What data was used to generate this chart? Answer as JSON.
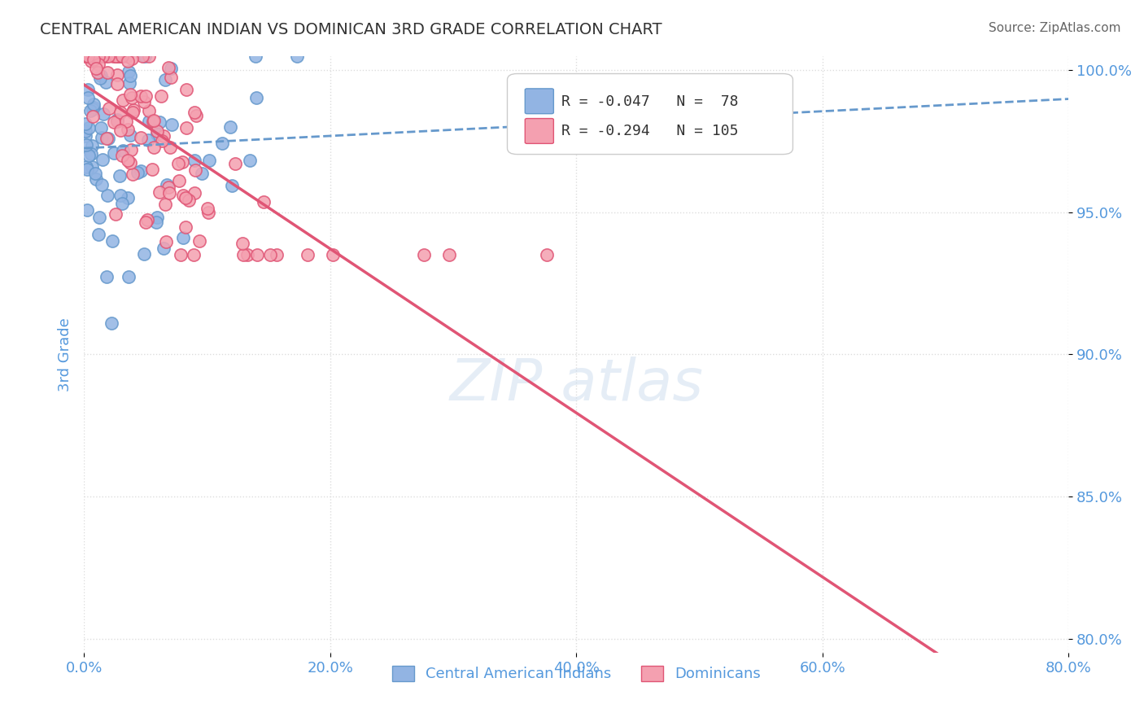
{
  "title": "CENTRAL AMERICAN INDIAN VS DOMINICAN 3RD GRADE CORRELATION CHART",
  "source_text": "Source: ZipAtlas.com",
  "xlabel": "",
  "ylabel": "3rd Grade",
  "legend_label1": "Central American Indians",
  "legend_label2": "Dominicans",
  "r1": -0.047,
  "n1": 78,
  "r2": -0.294,
  "n2": 105,
  "color1": "#92b4e3",
  "color2": "#f4a0b0",
  "line_color1": "#6699cc",
  "line_color2": "#e05575",
  "bg_color": "#ffffff",
  "title_color": "#444444",
  "axis_color": "#5599dd",
  "grid_color": "#dddddd",
  "watermark_color": "#ccddee",
  "xlim": [
    0.0,
    0.8
  ],
  "ylim": [
    0.795,
    1.005
  ],
  "yticks": [
    0.8,
    0.85,
    0.9,
    0.95,
    1.0
  ],
  "ytick_labels": [
    "80.0%",
    "85.0%",
    "90.0%",
    "95.0%",
    "100.0%"
  ],
  "xticks": [
    0.0,
    0.2,
    0.4,
    0.6,
    0.8
  ],
  "xtick_labels": [
    "0.0%",
    "20.0%",
    "40.0%",
    "60.0%",
    "80.0%"
  ],
  "seed1": 42,
  "seed2": 123,
  "figsize": [
    14.06,
    8.92
  ],
  "dpi": 100
}
